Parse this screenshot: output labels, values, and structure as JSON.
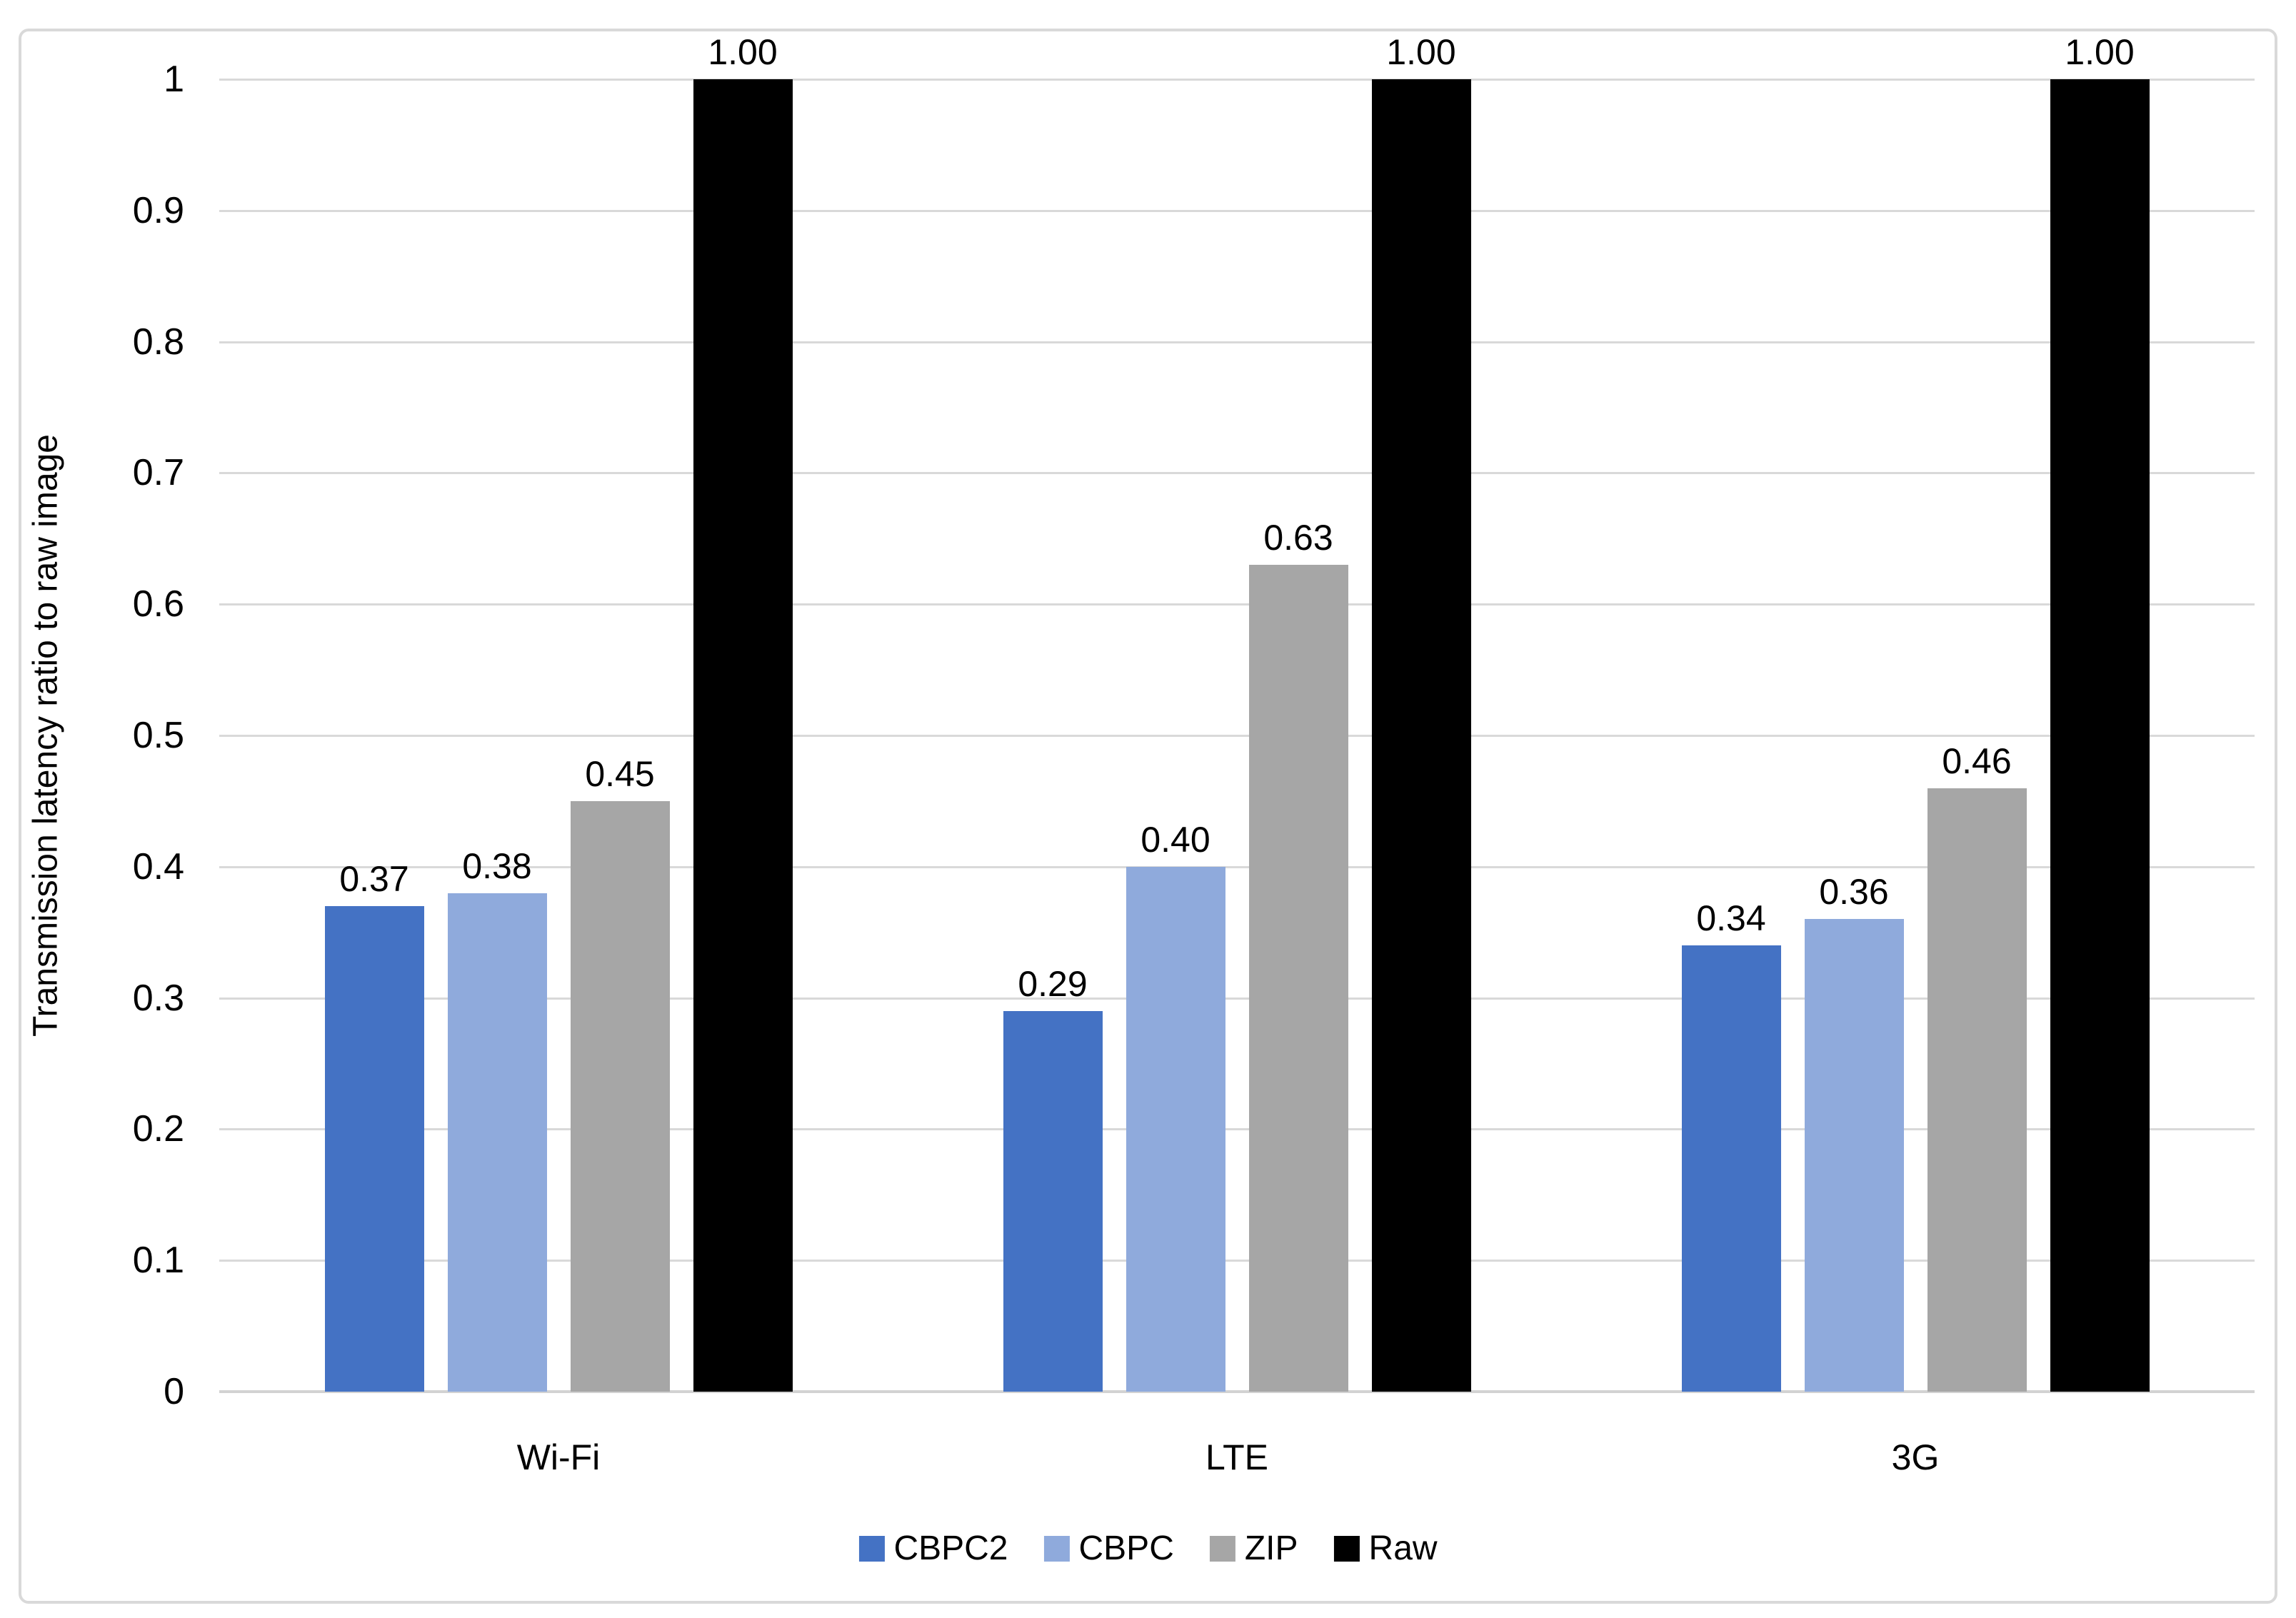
{
  "chart_data": {
    "type": "bar",
    "title": "",
    "xlabel": "",
    "ylabel": "Transmission latency ratio to raw image",
    "categories": [
      "Wi-Fi",
      "LTE",
      "3G"
    ],
    "series": [
      {
        "name": "CBPC2",
        "color": "#4472C4",
        "values": [
          0.37,
          0.29,
          0.34
        ],
        "labels": [
          "0.37",
          "0.29",
          "0.34"
        ]
      },
      {
        "name": "CBPC",
        "color": "#8FAADC",
        "values": [
          0.38,
          0.4,
          0.36
        ],
        "labels": [
          "0.38",
          "0.40",
          "0.36"
        ]
      },
      {
        "name": "ZIP",
        "color": "#A6A6A6",
        "values": [
          0.45,
          0.63,
          0.46
        ],
        "labels": [
          "0.45",
          "0.63",
          "0.46"
        ]
      },
      {
        "name": "Raw",
        "color": "#000000",
        "values": [
          1.0,
          1.0,
          1.0
        ],
        "labels": [
          "1.00",
          "1.00",
          "1.00"
        ]
      }
    ],
    "ylim": [
      0,
      1
    ],
    "yticks": [
      {
        "value": 0.0,
        "label": "0"
      },
      {
        "value": 0.1,
        "label": "0.1"
      },
      {
        "value": 0.2,
        "label": "0.2"
      },
      {
        "value": 0.3,
        "label": "0.3"
      },
      {
        "value": 0.4,
        "label": "0.4"
      },
      {
        "value": 0.5,
        "label": "0.5"
      },
      {
        "value": 0.6,
        "label": "0.6"
      },
      {
        "value": 0.7,
        "label": "0.7"
      },
      {
        "value": 0.8,
        "label": "0.8"
      },
      {
        "value": 0.9,
        "label": "0.9"
      },
      {
        "value": 1.0,
        "label": "1"
      }
    ],
    "grid": true,
    "legend_position": "bottom",
    "colors": {
      "gridline": "#D9D9D9",
      "axis_line": "#D2D2D2",
      "frame_border": "#D9D9D9",
      "text": "#000000"
    }
  }
}
